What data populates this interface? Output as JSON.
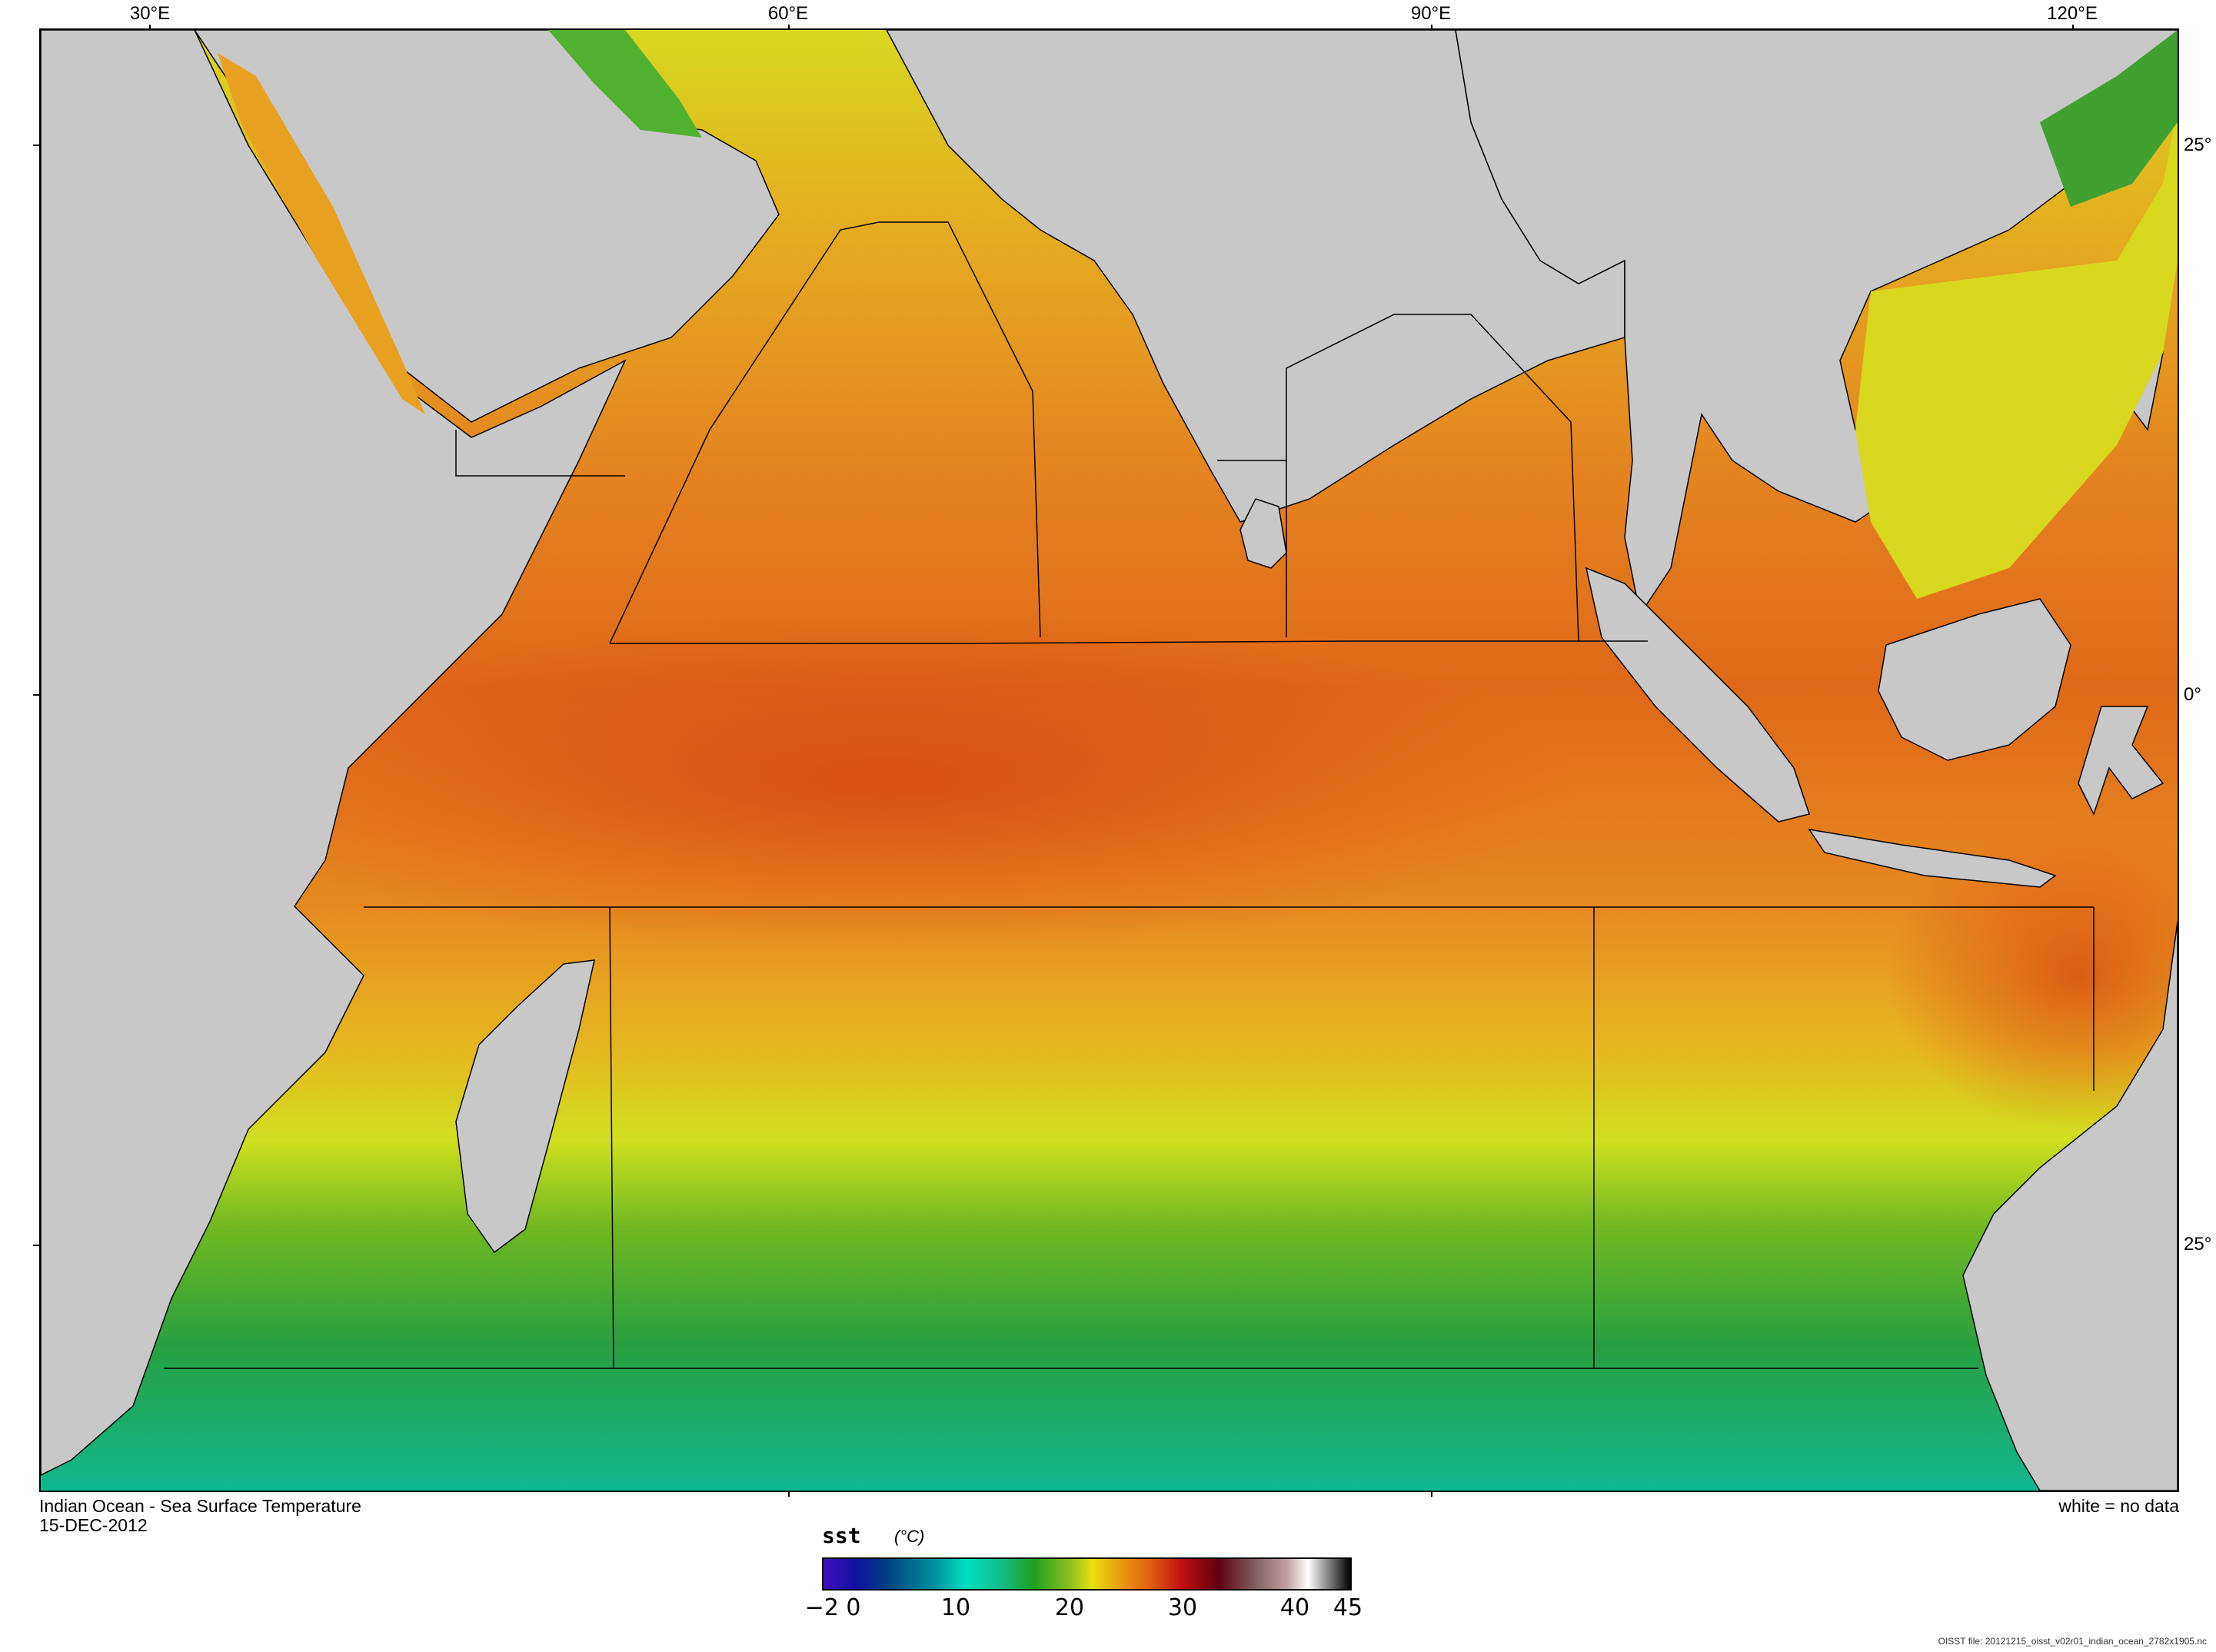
{
  "map": {
    "title": "Indian Ocean - Sea Surface Temperature",
    "date": "15-DEC-2012",
    "no_data_note": "white = no data",
    "lon_labels": [
      "30°E",
      "60°E",
      "90°E",
      "120°E"
    ],
    "lat_labels": [
      "25°",
      "0°",
      "25°"
    ],
    "colors": {
      "land": "#c8c8c8",
      "warm": "#e07020",
      "hot": "#d85010",
      "mid": "#e6b020",
      "yellow": "#d8e020",
      "green": "#40a020",
      "teal": "#10b080"
    }
  },
  "legend": {
    "variable": "sst",
    "unit": "(°C)",
    "tick_labels": [
      "−2 0",
      "10",
      "20",
      "30",
      "40",
      "45"
    ]
  },
  "footer": {
    "filename": "OISST file: 20121215_oisst_v02r01_indian_ocean_2782x1905.nc"
  }
}
